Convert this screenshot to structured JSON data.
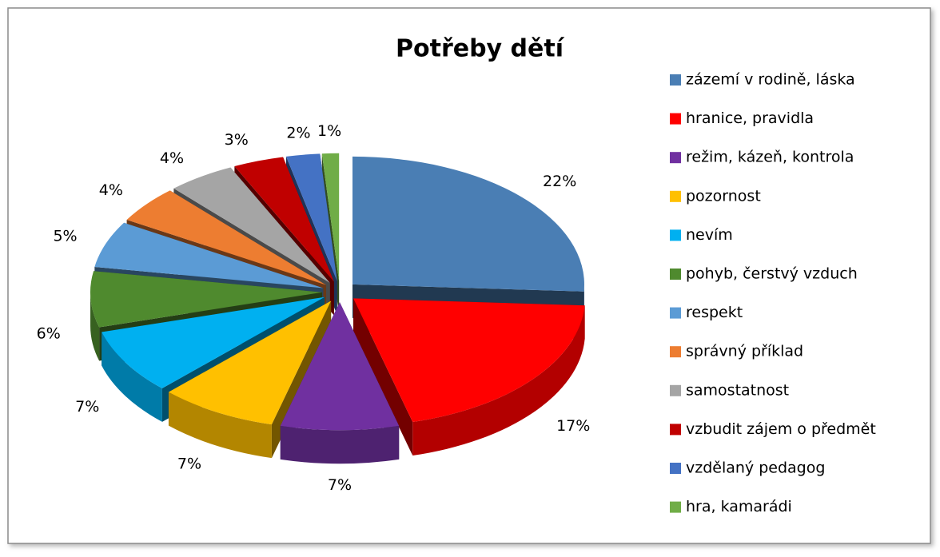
{
  "chart_data": {
    "type": "pie",
    "title": "Potřeby dětí",
    "labels": [
      "zázemí v rodině, láska",
      "hranice, pravidla",
      "režim, kázeň, kontrola",
      "pozornost",
      "nevím",
      "pohyb, čerstvý vzduch",
      "respekt",
      "správný příklad",
      "samostatnost",
      "vzbudit zájem o předmět",
      "vzdělaný pedagog",
      "hra, kamarádi"
    ],
    "values": [
      22,
      17,
      7,
      7,
      7,
      6,
      5,
      4,
      4,
      3,
      2,
      1
    ],
    "value_labels": [
      "22%",
      "17%",
      "7%",
      "7%",
      "7%",
      "6%",
      "5%",
      "4%",
      "4%",
      "3%",
      "2%",
      "1%"
    ],
    "colors": [
      "#4a7eb4",
      "#ff0000",
      "#7030a0",
      "#ffc000",
      "#00b0f0",
      "#4f8a2e",
      "#5b9bd5",
      "#ed7d31",
      "#a5a5a5",
      "#c00000",
      "#4472c4",
      "#70ad47"
    ],
    "legend": "right"
  }
}
